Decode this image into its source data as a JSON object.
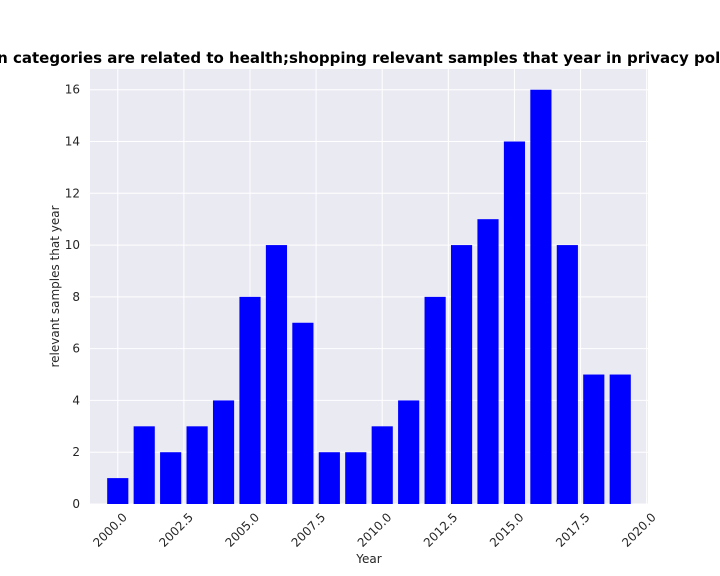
{
  "colors": {
    "bar": "#0000ff",
    "plot_background": "#eaeaf2",
    "grid": "#ffffff",
    "text": "#262626"
  },
  "chart_data": {
    "type": "bar",
    "title": "Years when categories are related to health;shopping relevant samples that year in privacy policies by year",
    "xlabel": "Year",
    "ylabel": "relevant samples that year",
    "x": [
      2000,
      2001,
      2002,
      2003,
      2004,
      2005,
      2006,
      2007,
      2008,
      2009,
      2010,
      2011,
      2012,
      2013,
      2014,
      2015,
      2016,
      2017,
      2018,
      2019
    ],
    "values": [
      1,
      3,
      2,
      3,
      4,
      8,
      10,
      7,
      2,
      2,
      3,
      4,
      8,
      10,
      11,
      14,
      16,
      10,
      5,
      5
    ],
    "xlim": [
      1998.95,
      2020.05
    ],
    "ylim": [
      0,
      16.8
    ],
    "xticks": [
      2000.0,
      2002.5,
      2005.0,
      2007.5,
      2010.0,
      2012.5,
      2015.0,
      2017.5,
      2020.0
    ],
    "xtick_labels": [
      "2000.0",
      "2002.5",
      "2005.0",
      "2007.5",
      "2010.0",
      "2012.5",
      "2015.0",
      "2017.5",
      "2020.0"
    ],
    "yticks": [
      0,
      2,
      4,
      6,
      8,
      10,
      12,
      14,
      16
    ],
    "ytick_labels": [
      "0",
      "2",
      "4",
      "6",
      "8",
      "10",
      "12",
      "14",
      "16"
    ],
    "grid": true,
    "legend": "none"
  }
}
